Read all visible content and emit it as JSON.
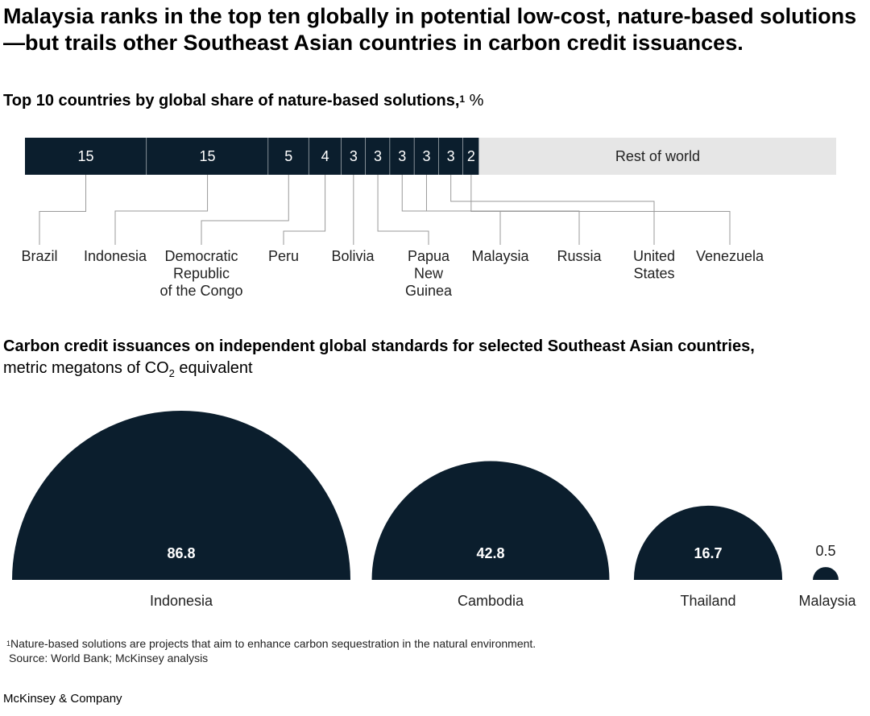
{
  "title": "Malaysia ranks in the top ten globally in potential low-cost, nature-based solutions—but trails other Southeast Asian countries in carbon credit issuances.",
  "chart1_title": "Top 10 countries by global share of nature-based solutions,",
  "chart1_footnote_marker": "1",
  "chart1_unit": "%",
  "chart2_title": "Carbon credit issuances on independent global standards for selected Southeast Asian countries,",
  "chart2_unit_prefix": "metric megatons of CO",
  "chart2_unit_sub": "2",
  "chart2_unit_suffix": " equivalent",
  "footnote_marker": "1",
  "footnote": "Nature-based solutions are projects that aim to enhance carbon sequestration in the natural environment.",
  "source": "Source: World Bank; McKinsey analysis",
  "brand": "McKinsey & Company",
  "colors": {
    "dark": "#0b1e2d",
    "rest": "#e6e6e6",
    "leader": "#9a9a9a"
  },
  "chart_data": [
    {
      "type": "bar",
      "subtype": "stacked-horizontal",
      "categories": [
        "Brazil",
        "Indonesia",
        "Democratic Republic of the Congo",
        "Peru",
        "Bolivia",
        "Papua New Guinea",
        "Malaysia",
        "Russia",
        "United States",
        "Venezuela",
        "Rest of world"
      ],
      "category_labels": [
        [
          "Brazil"
        ],
        [
          "Indonesia"
        ],
        [
          "Democratic",
          "Republic",
          "of the Congo"
        ],
        [
          "Peru"
        ],
        [
          "Bolivia"
        ],
        [
          "Papua",
          "New",
          "Guinea"
        ],
        [
          "Malaysia"
        ],
        [
          "Russia"
        ],
        [
          "United",
          "States"
        ],
        [
          "Venezuela"
        ],
        [
          "Rest of world"
        ]
      ],
      "values": [
        15,
        15,
        5,
        4,
        3,
        3,
        3,
        3,
        3,
        2,
        44
      ],
      "value_labels": [
        "15",
        "15",
        "5",
        "4",
        "3",
        "3",
        "3",
        "3",
        "3",
        "2",
        "Rest of world"
      ],
      "xlim": [
        0,
        100
      ]
    },
    {
      "type": "area",
      "subtype": "semicircles",
      "categories": [
        "Indonesia",
        "Cambodia",
        "Thailand",
        "Malaysia"
      ],
      "values": [
        86.8,
        42.8,
        16.7,
        0.5
      ],
      "value_labels": [
        "86.8",
        "42.8",
        "16.7",
        "0.5"
      ]
    }
  ]
}
